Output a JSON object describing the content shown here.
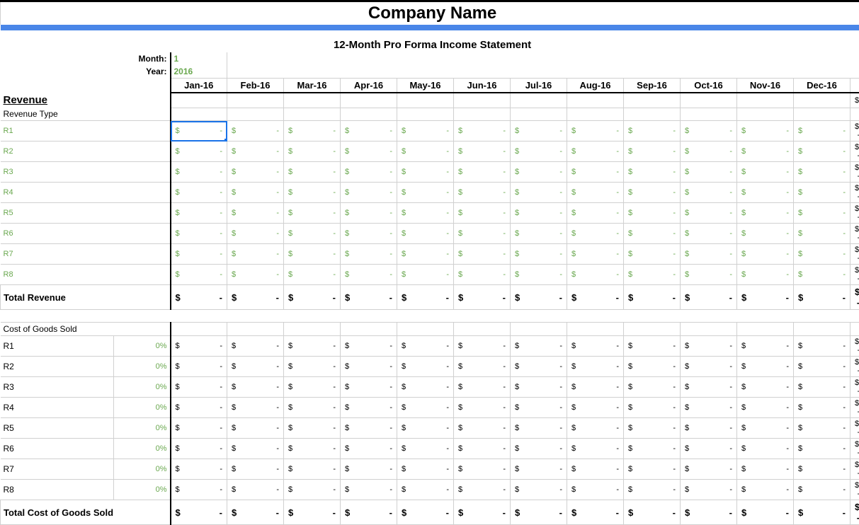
{
  "title": "Company Name",
  "subtitle": "12-Month Pro Forma Income Statement",
  "inputs": {
    "month_label": "Month:",
    "month_value": "1",
    "year_label": "Year:",
    "year_value": "2016"
  },
  "months": [
    "Jan-16",
    "Feb-16",
    "Mar-16",
    "Apr-16",
    "May-16",
    "Jun-16",
    "Jul-16",
    "Aug-16",
    "Sep-16",
    "Oct-16",
    "Nov-16",
    "Dec-16"
  ],
  "revenue": {
    "header": "Revenue",
    "type_label": "Revenue Type",
    "rows": [
      "R1",
      "R2",
      "R3",
      "R4",
      "R5",
      "R6",
      "R7",
      "R8"
    ],
    "total_label": "Total Revenue"
  },
  "cogs": {
    "header": "Cost of Goods Sold",
    "rows": [
      "R1",
      "R2",
      "R3",
      "R4",
      "R5",
      "R6",
      "R7",
      "R8"
    ],
    "pct": "0%",
    "total_label": "Total Cost of Goods Sold"
  },
  "money": {
    "symbol": "$",
    "dash": "-"
  },
  "style": {
    "accent_blue": "#4a86e8",
    "input_green": "#6aa84f",
    "selection_blue": "#1a73e8",
    "grid": "#d0d0d0",
    "title_fontsize": 24,
    "subtitle_fontsize": 15,
    "header_fontsize": 15,
    "month_header_fontsize": 13,
    "body_fontsize": 12,
    "small_fontsize": 11
  },
  "selected_cell": {
    "row": "R1",
    "month_index": 0
  }
}
